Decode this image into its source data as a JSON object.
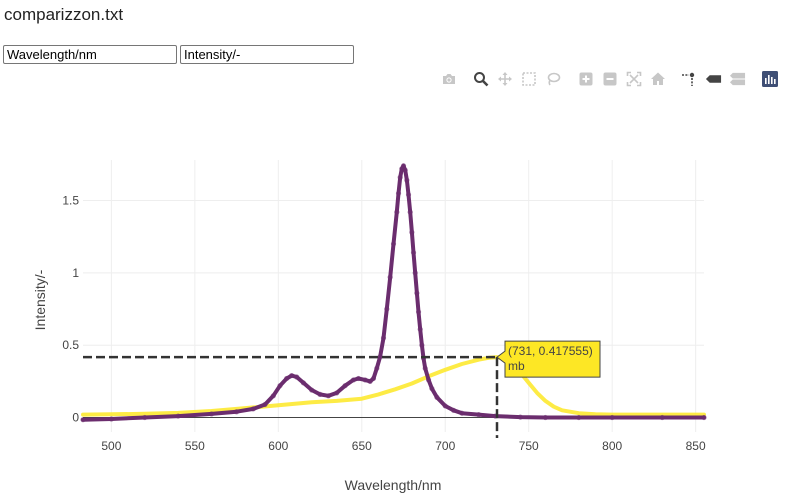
{
  "file": {
    "title": "comparizzon.txt"
  },
  "fields": {
    "x_column": "Wavelength/nm",
    "y_column": "Intensity/-"
  },
  "modebar": {
    "buttons": [
      "camera-icon",
      "zoom-icon",
      "pan-icon",
      "box-select-icon",
      "lasso-select-icon",
      "zoom-in-icon",
      "zoom-out-icon",
      "autoscale-icon",
      "reset-axes-icon",
      "spike-lines-icon",
      "hover-closest-icon",
      "hover-compare-icon",
      "plotly-logo-icon"
    ],
    "colors": {
      "icon": "#c7c7c7",
      "logo": "#3f4f75"
    }
  },
  "tooltip": {
    "coords": "(731, 0.417555)",
    "series": "mb",
    "x": 731,
    "y": 0.417555
  },
  "chart_data": {
    "type": "line",
    "xlabel": "Wavelength/nm",
    "ylabel": "Intensity/-",
    "xlim": [
      483,
      855
    ],
    "ylim": [
      -0.1,
      1.78
    ],
    "xticks": [
      500,
      550,
      600,
      650,
      700,
      750,
      800,
      850
    ],
    "xtick_labels": [
      "500",
      "550",
      "600",
      "650",
      "700",
      "750",
      "800",
      "850"
    ],
    "yticks": [
      0,
      0.5,
      1,
      1.5
    ],
    "ytick_labels": [
      "0",
      "0.5",
      "1",
      "1.5"
    ],
    "grid": true,
    "series": [
      {
        "name": "mb",
        "color": "#fde725",
        "style": "line",
        "points": [
          [
            483,
            0.02
          ],
          [
            500,
            0.022
          ],
          [
            520,
            0.026
          ],
          [
            540,
            0.032
          ],
          [
            560,
            0.045
          ],
          [
            575,
            0.06
          ],
          [
            590,
            0.075
          ],
          [
            605,
            0.09
          ],
          [
            620,
            0.105
          ],
          [
            635,
            0.115
          ],
          [
            650,
            0.13
          ],
          [
            660,
            0.16
          ],
          [
            670,
            0.195
          ],
          [
            680,
            0.235
          ],
          [
            690,
            0.285
          ],
          [
            700,
            0.33
          ],
          [
            710,
            0.37
          ],
          [
            720,
            0.4
          ],
          [
            726,
            0.413
          ],
          [
            731,
            0.4176
          ],
          [
            736,
            0.405
          ],
          [
            740,
            0.37
          ],
          [
            745,
            0.31
          ],
          [
            750,
            0.24
          ],
          [
            755,
            0.17
          ],
          [
            760,
            0.115
          ],
          [
            765,
            0.075
          ],
          [
            770,
            0.05
          ],
          [
            780,
            0.03
          ],
          [
            790,
            0.022
          ],
          [
            800,
            0.02
          ],
          [
            820,
            0.02
          ],
          [
            840,
            0.02
          ],
          [
            855,
            0.02
          ]
        ]
      },
      {
        "name": "",
        "color": "#6b2d6e",
        "style": "line+markers",
        "points": [
          [
            483,
            -0.015
          ],
          [
            500,
            -0.01
          ],
          [
            520,
            0.0
          ],
          [
            540,
            0.01
          ],
          [
            560,
            0.025
          ],
          [
            575,
            0.04
          ],
          [
            585,
            0.06
          ],
          [
            592,
            0.09
          ],
          [
            597,
            0.15
          ],
          [
            601,
            0.22
          ],
          [
            605,
            0.27
          ],
          [
            608,
            0.29
          ],
          [
            611,
            0.28
          ],
          [
            615,
            0.24
          ],
          [
            620,
            0.19
          ],
          [
            625,
            0.16
          ],
          [
            630,
            0.15
          ],
          [
            635,
            0.17
          ],
          [
            640,
            0.22
          ],
          [
            645,
            0.26
          ],
          [
            648,
            0.27
          ],
          [
            652,
            0.26
          ],
          [
            655,
            0.25
          ],
          [
            657,
            0.27
          ],
          [
            659,
            0.34
          ],
          [
            661,
            0.42
          ],
          [
            663,
            0.55
          ],
          [
            665,
            0.75
          ],
          [
            667,
            0.97
          ],
          [
            669,
            1.2
          ],
          [
            671,
            1.42
          ],
          [
            672,
            1.55
          ],
          [
            673,
            1.66
          ],
          [
            674,
            1.72
          ],
          [
            675,
            1.74
          ],
          [
            676,
            1.71
          ],
          [
            677,
            1.64
          ],
          [
            678,
            1.54
          ],
          [
            679,
            1.42
          ],
          [
            680,
            1.28
          ],
          [
            681,
            1.14
          ],
          [
            682,
            1.0
          ],
          [
            683,
            0.86
          ],
          [
            684,
            0.73
          ],
          [
            685,
            0.61
          ],
          [
            686,
            0.5
          ],
          [
            687,
            0.41
          ],
          [
            688,
            0.34
          ],
          [
            690,
            0.26
          ],
          [
            692,
            0.2
          ],
          [
            695,
            0.14
          ],
          [
            700,
            0.08
          ],
          [
            705,
            0.05
          ],
          [
            710,
            0.03
          ],
          [
            720,
            0.02
          ],
          [
            730,
            0.01
          ],
          [
            745,
            0.003
          ],
          [
            760,
            0.0
          ],
          [
            780,
            0.0
          ],
          [
            800,
            0.0
          ],
          [
            830,
            0.0
          ],
          [
            855,
            0.0
          ]
        ]
      }
    ]
  }
}
